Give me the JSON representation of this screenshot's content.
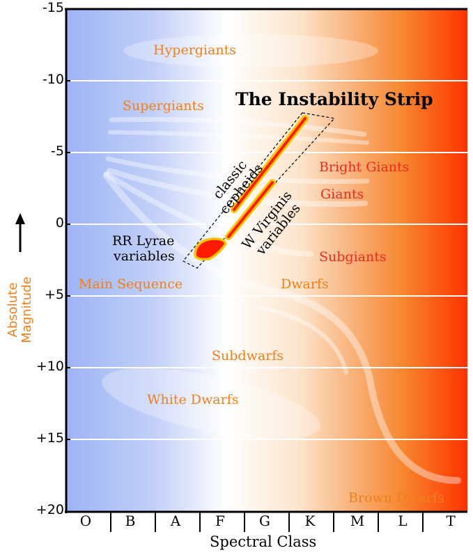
{
  "y_axis": {
    "title_line1": "Absolute",
    "title_line2": "Magnitude",
    "ticks": [
      "-15",
      "-10",
      "-5",
      "0",
      "+5",
      "+10",
      "+15",
      "+20"
    ]
  },
  "x_axis": {
    "title": "Spectral Class",
    "classes": [
      "O",
      "B",
      "A",
      "F",
      "G",
      "K",
      "M",
      "L",
      "T"
    ]
  },
  "regions": {
    "hypergiants": "Hypergiants",
    "supergiants": "Supergiants",
    "bright_giants": "Bright Giants",
    "giants": "Giants",
    "subgiants": "Subgiants",
    "main_sequence": "Main Sequence",
    "dwarfs": "Dwarfs",
    "subdwarfs": "Subdwarfs",
    "white_dwarfs": "White Dwarfs",
    "brown_dwarfs": "Brown Dwarfs"
  },
  "instability_strip": {
    "title": "The Instability Strip",
    "classic_line1": "classic",
    "classic_line2": "cepheids",
    "wvir_line1": "W Virginis",
    "wvir_line2": "variables",
    "rr_line1": "RR Lyrae",
    "rr_line2": "variables"
  },
  "colors": {
    "hot_blue": "#9db4f5",
    "white": "#ffffff",
    "orange": "#f7a25c",
    "cool_red": "#ff3300",
    "label_orange": "#f07f1b",
    "label_red": "#ee2a1c",
    "variable_red": "#ff1a00",
    "variable_outline": "#f5c400"
  }
}
